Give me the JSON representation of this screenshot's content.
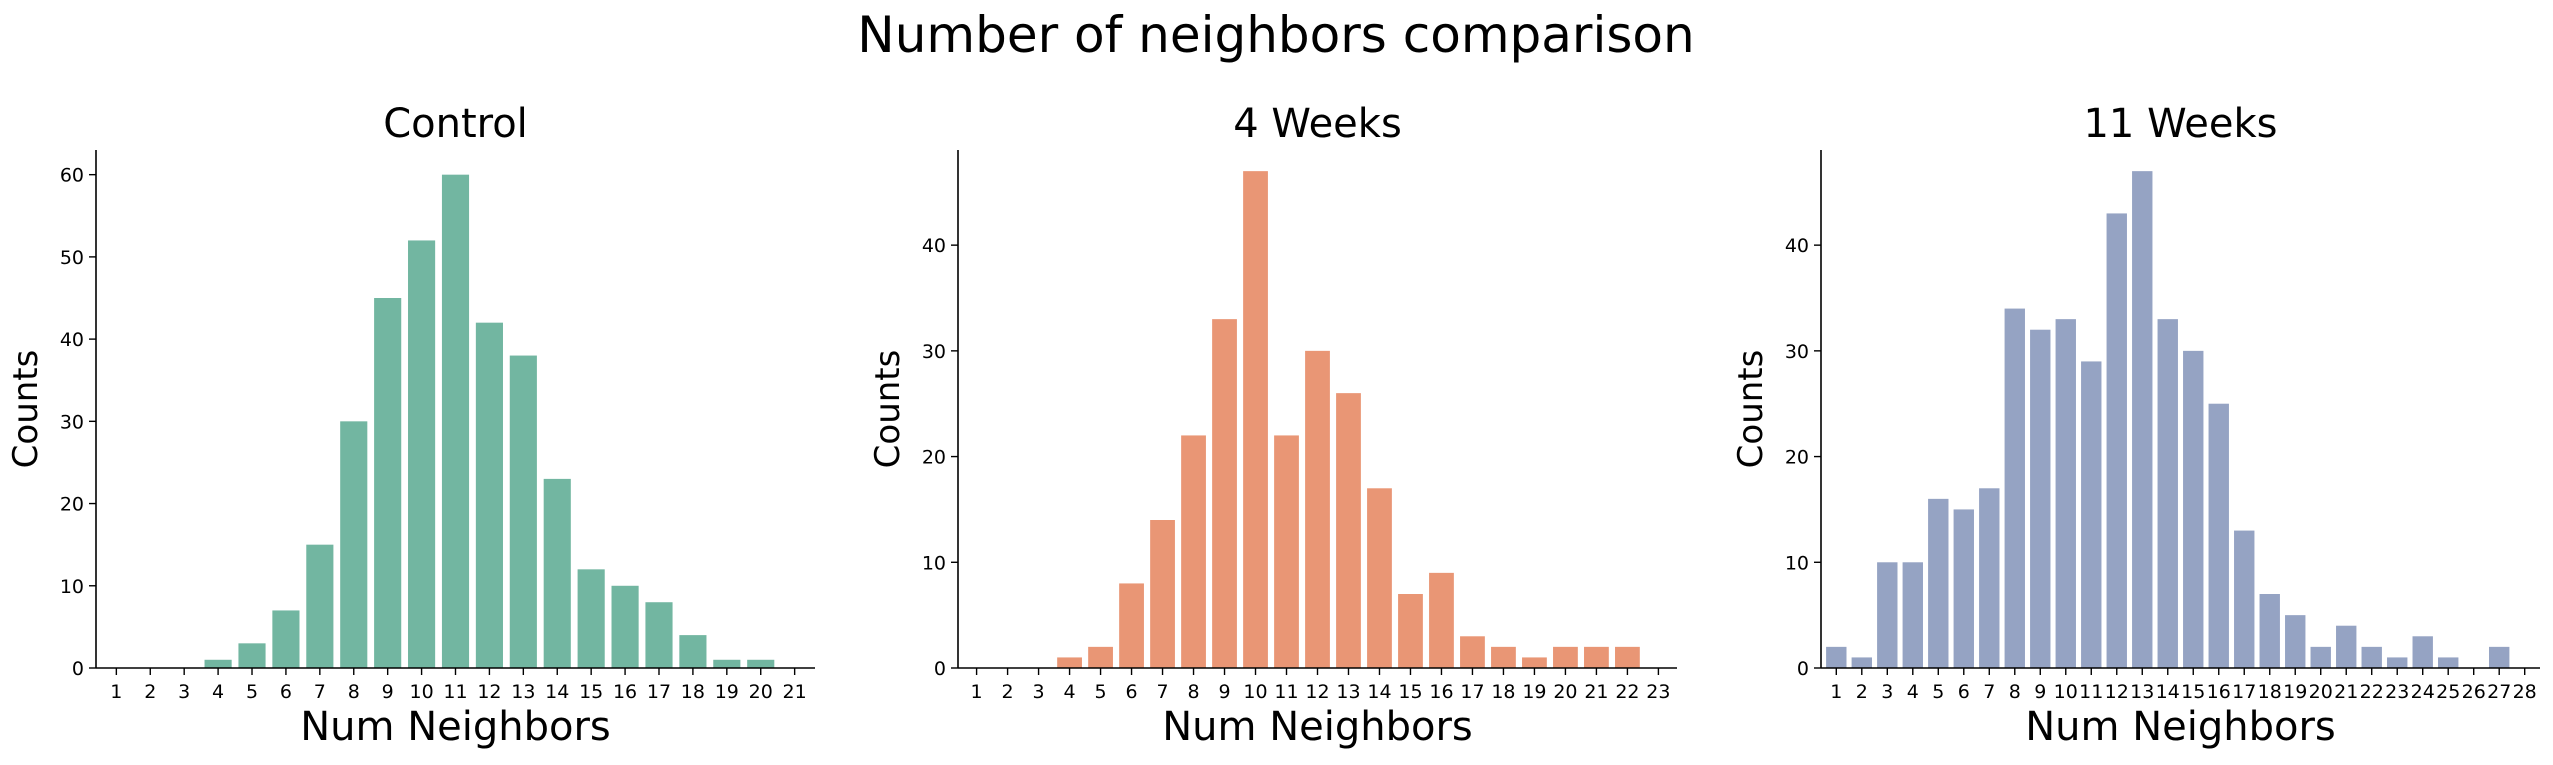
{
  "figure": {
    "suptitle": "Number of neighbors comparison"
  },
  "chart_data": [
    {
      "type": "bar",
      "title": "Control",
      "xlabel": "Num Neighbors",
      "ylabel": "Counts",
      "color": "#72b6a1",
      "categories": [
        "1",
        "2",
        "3",
        "4",
        "5",
        "6",
        "7",
        "8",
        "9",
        "10",
        "11",
        "12",
        "13",
        "14",
        "15",
        "16",
        "17",
        "18",
        "19",
        "20",
        "21"
      ],
      "values": [
        0,
        0,
        0,
        1,
        3,
        7,
        15,
        30,
        45,
        52,
        60,
        42,
        38,
        23,
        12,
        10,
        8,
        4,
        1,
        1,
        0
      ],
      "ylim": [
        0,
        63
      ],
      "yticks": [
        0,
        10,
        20,
        30,
        40,
        50,
        60
      ],
      "grid": false
    },
    {
      "type": "bar",
      "title": "4 Weeks",
      "xlabel": "Num Neighbors",
      "ylabel": "Counts",
      "color": "#e99675",
      "categories": [
        "1",
        "2",
        "3",
        "4",
        "5",
        "6",
        "7",
        "8",
        "9",
        "10",
        "11",
        "12",
        "13",
        "14",
        "15",
        "16",
        "17",
        "18",
        "19",
        "20",
        "21",
        "22",
        "23"
      ],
      "values": [
        0,
        0,
        0,
        1,
        2,
        8,
        14,
        22,
        33,
        47,
        22,
        30,
        26,
        17,
        7,
        9,
        3,
        2,
        1,
        2,
        2,
        2,
        0
      ],
      "ylim": [
        0,
        49
      ],
      "yticks": [
        0,
        10,
        20,
        30,
        40
      ],
      "grid": false
    },
    {
      "type": "bar",
      "title": "11 Weeks",
      "xlabel": "Num Neighbors",
      "ylabel": "Counts",
      "color": "#95a3c3",
      "categories": [
        "1",
        "2",
        "3",
        "4",
        "5",
        "6",
        "7",
        "8",
        "9",
        "10",
        "11",
        "12",
        "13",
        "14",
        "15",
        "16",
        "17",
        "18",
        "19",
        "20",
        "21",
        "22",
        "23",
        "24",
        "25",
        "26",
        "27",
        "28"
      ],
      "values": [
        2,
        1,
        10,
        10,
        16,
        15,
        17,
        34,
        32,
        33,
        29,
        43,
        47,
        33,
        30,
        25,
        13,
        7,
        5,
        2,
        4,
        2,
        1,
        3,
        1,
        0,
        2,
        0
      ],
      "ylim": [
        0,
        49
      ],
      "yticks": [
        0,
        10,
        20,
        30,
        40
      ],
      "grid": false
    }
  ]
}
